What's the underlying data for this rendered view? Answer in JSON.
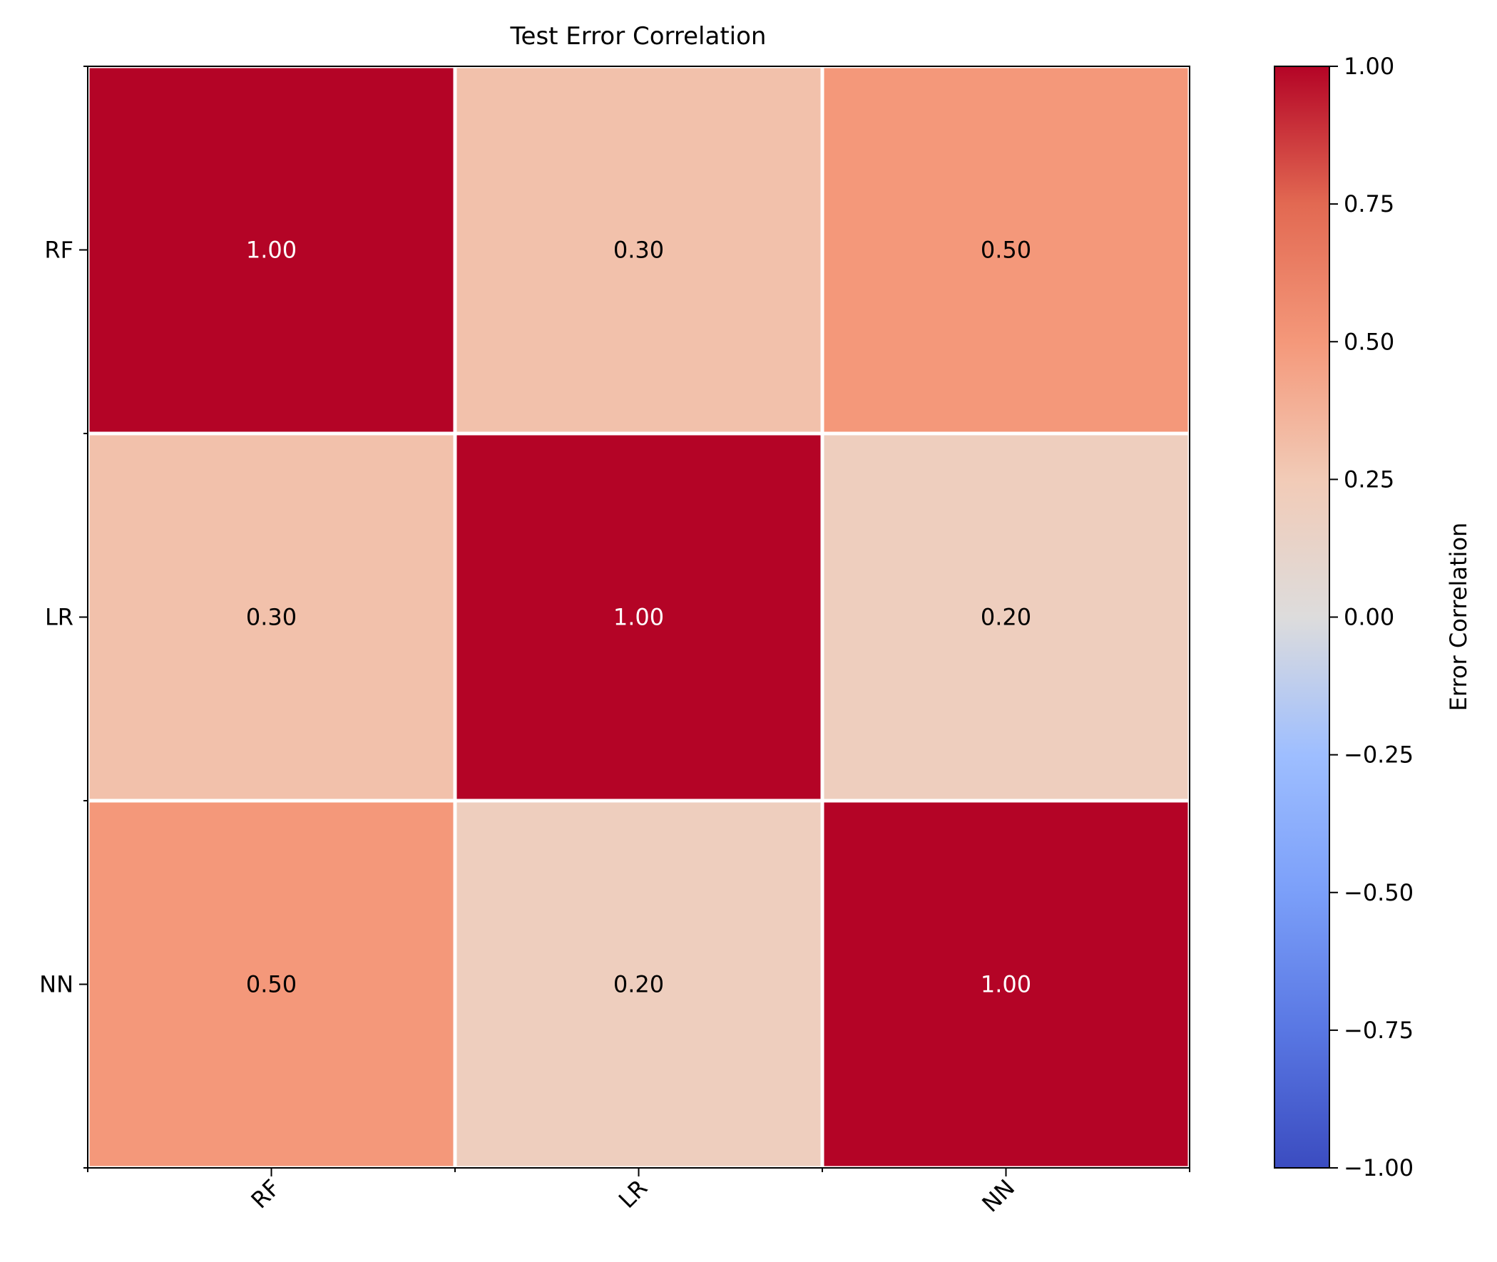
{
  "chart_data": {
    "type": "heatmap",
    "title": "Test Error Correlation",
    "row_labels": [
      "RF",
      "LR",
      "NN"
    ],
    "col_labels": [
      "RF",
      "LR",
      "NN"
    ],
    "values": [
      [
        1.0,
        0.3,
        0.5
      ],
      [
        0.3,
        1.0,
        0.2
      ],
      [
        0.5,
        0.2,
        1.0
      ]
    ],
    "cell_labels": [
      [
        "1.00",
        "0.30",
        "0.50"
      ],
      [
        "0.30",
        "1.00",
        "0.20"
      ],
      [
        "0.50",
        "0.20",
        "1.00"
      ]
    ],
    "colorbar": {
      "label": "Error Correlation",
      "range": [
        -1.0,
        1.0
      ],
      "colormap": "coolwarm",
      "ticks": [
        -1.0,
        -0.75,
        -0.5,
        -0.25,
        0.0,
        0.25,
        0.5,
        0.75,
        1.0
      ],
      "tick_labels": [
        "−1.00",
        "−0.75",
        "−0.50",
        "−0.25",
        "0.00",
        "0.25",
        "0.50",
        "0.75",
        "1.00"
      ]
    },
    "x_tick_rotation": "45 degrees",
    "grid": false
  }
}
